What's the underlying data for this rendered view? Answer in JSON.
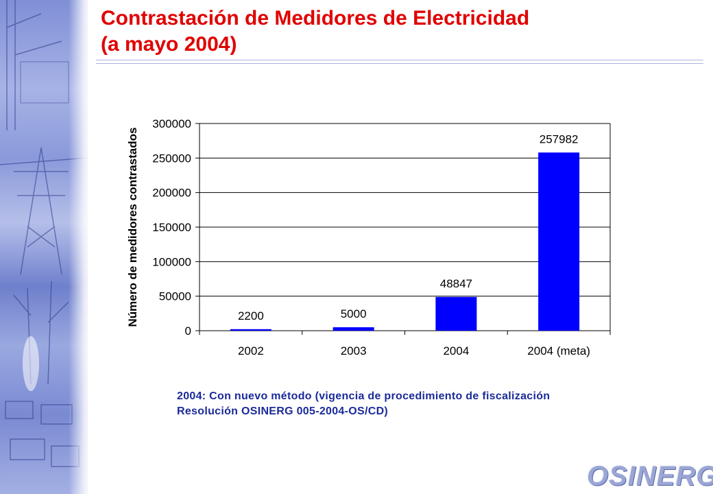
{
  "title": {
    "line1": "Contrastación de Medidores de Electricidad",
    "line2": "(a mayo 2004)"
  },
  "chart_data": {
    "type": "bar",
    "categories": [
      "2002",
      "2003",
      "2004",
      "2004 (meta)"
    ],
    "values": [
      2200,
      5000,
      48847,
      257982
    ],
    "data_labels": [
      "2200",
      "5000",
      "48847",
      "257982"
    ],
    "ylabel": "Número de medidores contrastados",
    "xlabel": "",
    "ylim": [
      0,
      300000
    ],
    "yticks": [
      0,
      50000,
      100000,
      150000,
      200000,
      250000,
      300000
    ],
    "ytick_labels": [
      "0",
      "50000",
      "100000",
      "150000",
      "200000",
      "250000",
      "300000"
    ],
    "grid": true,
    "legend": "none",
    "bar_color": "#0000ff"
  },
  "note": {
    "line1": "2004: Con nuevo método (vigencia de procedimiento de fiscalización",
    "line2": "Resolución  OSINERG 005-2004-OS/CD)"
  },
  "logo": {
    "text": "OSINERG"
  },
  "colors": {
    "title": "#e00000",
    "note": "#1a2a9a",
    "bars": "#0000ff"
  }
}
